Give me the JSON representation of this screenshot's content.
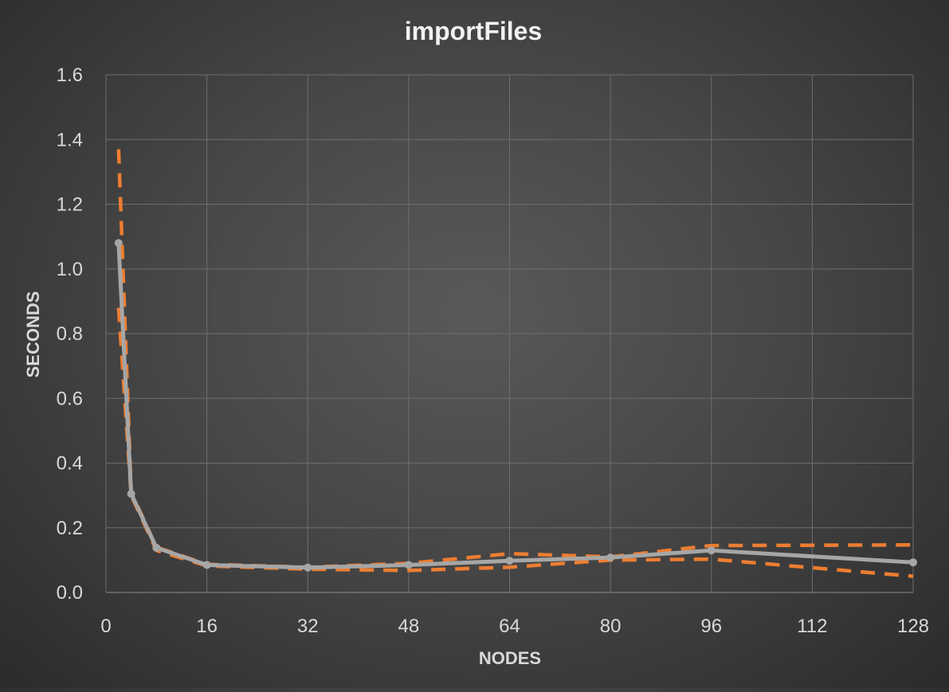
{
  "chart_data": {
    "type": "line",
    "title": "importFiles",
    "xlabel": "NODES",
    "ylabel": "SECONDS",
    "xlim": [
      0,
      128
    ],
    "ylim": [
      0,
      1.6
    ],
    "x_ticks": [
      0,
      16,
      32,
      48,
      64,
      80,
      96,
      112,
      128
    ],
    "x_tick_labels": [
      "0",
      "16",
      "32",
      "48",
      "64",
      "80",
      "96",
      "112",
      "128"
    ],
    "y_ticks": [
      0,
      0.2,
      0.4,
      0.6,
      0.8,
      1.0,
      1.2,
      1.4,
      1.6
    ],
    "y_tick_labels": [
      "0.0",
      "0.2",
      "0.4",
      "0.6",
      "0.8",
      "1.0",
      "1.2",
      "1.4",
      "1.6"
    ],
    "grid": true,
    "legend": "none",
    "series": [
      {
        "style": "solid-with-markers",
        "color": "#a6a6a6",
        "x": [
          2,
          4,
          8,
          16,
          32,
          48,
          64,
          80,
          96,
          128
        ],
        "y": [
          1.08,
          0.305,
          0.138,
          0.085,
          0.077,
          0.085,
          0.098,
          0.108,
          0.13,
          0.093
        ]
      },
      {
        "style": "dashed",
        "color": "#ed7d31",
        "x": [
          2,
          4,
          8,
          16,
          32,
          48,
          64,
          80,
          96,
          128
        ],
        "y": [
          1.37,
          0.31,
          0.14,
          0.087,
          0.078,
          0.09,
          0.12,
          0.11,
          0.145,
          0.147
        ]
      },
      {
        "style": "dashed",
        "color": "#ed7d31",
        "x": [
          2,
          4,
          8,
          16,
          32,
          48,
          64,
          80,
          96,
          128
        ],
        "y": [
          0.88,
          0.3,
          0.13,
          0.082,
          0.072,
          0.068,
          0.078,
          0.1,
          0.103,
          0.05
        ]
      }
    ]
  }
}
